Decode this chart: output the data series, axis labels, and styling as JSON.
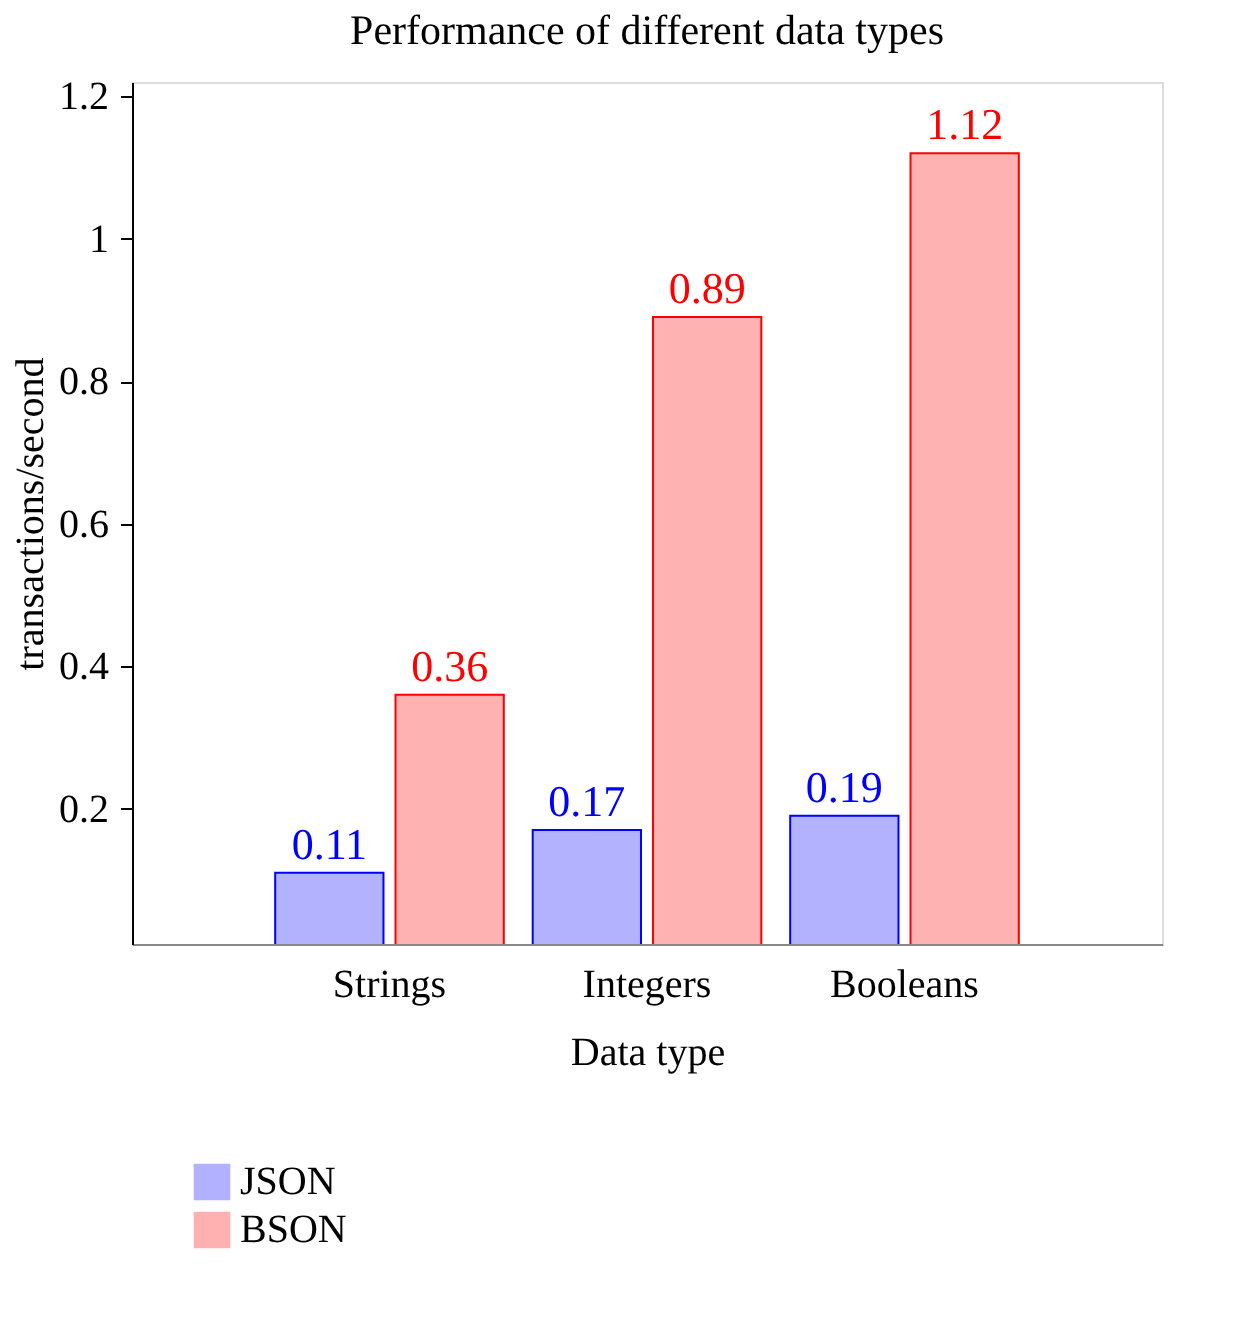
{
  "chart_data": {
    "type": "bar",
    "title": "Performance of different data types",
    "xlabel": "Data type",
    "ylabel": "transactions/second",
    "categories": [
      "Strings",
      "Integers",
      "Booleans"
    ],
    "series": [
      {
        "name": "JSON",
        "color": "#0000ff",
        "values": [
          0.11,
          0.17,
          0.19
        ]
      },
      {
        "name": "BSON",
        "color": "#ff0000",
        "values": [
          0.36,
          0.89,
          1.12
        ]
      }
    ],
    "ylim": [
      0.01,
      1.22
    ],
    "yticks": [
      0.2,
      0.4,
      0.6,
      0.8,
      1,
      1.2
    ],
    "grid": false,
    "legend": "bottom",
    "data_labels": true
  }
}
